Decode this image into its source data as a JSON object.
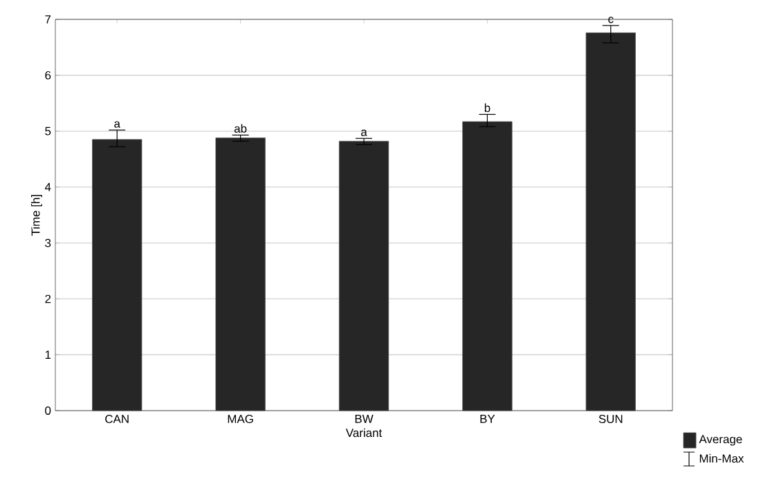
{
  "chart_data": {
    "type": "bar",
    "xlabel": "Variant",
    "ylabel": "Time [h]",
    "categories": [
      "CAN",
      "MAG",
      "BW",
      "BY",
      "SUN"
    ],
    "series": [
      {
        "name": "Average",
        "color": "#262626",
        "values": [
          4.85,
          4.88,
          4.82,
          5.17,
          6.76
        ],
        "errors": [
          [
            4.72,
            5.02
          ],
          [
            4.82,
            4.93
          ],
          [
            4.76,
            4.87
          ],
          [
            5.08,
            5.3
          ],
          [
            6.58,
            6.89
          ]
        ]
      }
    ],
    "ylim": [
      0,
      7
    ],
    "yticks": [
      0,
      1,
      2,
      3,
      4,
      5,
      6,
      7
    ],
    "grid": "y",
    "legend": "bottom right",
    "annotations": [
      {
        "text": "a",
        "x": "CAN",
        "y": 5.02
      },
      {
        "text": "ab",
        "x": "MAG",
        "y": 4.93
      },
      {
        "text": "a",
        "x": "BW",
        "y": 4.87
      },
      {
        "text": "b",
        "x": "BY",
        "y": 5.3
      },
      {
        "text": "c",
        "x": "SUN",
        "y": 6.89
      },
      "Min-Max"
    ]
  }
}
